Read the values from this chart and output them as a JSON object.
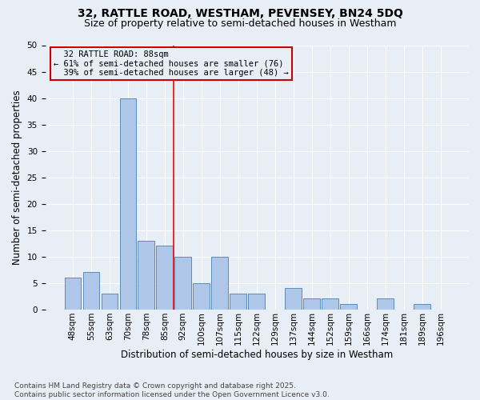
{
  "title_line1": "32, RATTLE ROAD, WESTHAM, PEVENSEY, BN24 5DQ",
  "title_line2": "Size of property relative to semi-detached houses in Westham",
  "xlabel": "Distribution of semi-detached houses by size in Westham",
  "ylabel": "Number of semi-detached properties",
  "categories": [
    "48sqm",
    "55sqm",
    "63sqm",
    "70sqm",
    "78sqm",
    "85sqm",
    "92sqm",
    "100sqm",
    "107sqm",
    "115sqm",
    "122sqm",
    "129sqm",
    "137sqm",
    "144sqm",
    "152sqm",
    "159sqm",
    "166sqm",
    "174sqm",
    "181sqm",
    "189sqm",
    "196sqm"
  ],
  "values": [
    6,
    7,
    3,
    40,
    13,
    12,
    10,
    5,
    10,
    3,
    3,
    0,
    4,
    2,
    2,
    1,
    0,
    2,
    0,
    1,
    0
  ],
  "bar_color": "#aec6e8",
  "bar_edge_color": "#5b8db8",
  "background_color": "#e8eef5",
  "grid_color": "#ffffff",
  "property_label": "32 RATTLE ROAD: 88sqm",
  "pct_smaller": 61,
  "count_smaller": 76,
  "pct_larger": 39,
  "count_larger": 48,
  "vline_bin_index": 5,
  "annotation_box_edgecolor": "#cc0000",
  "ylim": [
    0,
    50
  ],
  "yticks": [
    0,
    5,
    10,
    15,
    20,
    25,
    30,
    35,
    40,
    45,
    50
  ],
  "footnote": "Contains HM Land Registry data © Crown copyright and database right 2025.\nContains public sector information licensed under the Open Government Licence v3.0.",
  "title_fontsize": 10,
  "subtitle_fontsize": 9,
  "axis_label_fontsize": 8.5,
  "tick_fontsize": 7.5,
  "annotation_fontsize": 7.5,
  "footnote_fontsize": 6.5
}
